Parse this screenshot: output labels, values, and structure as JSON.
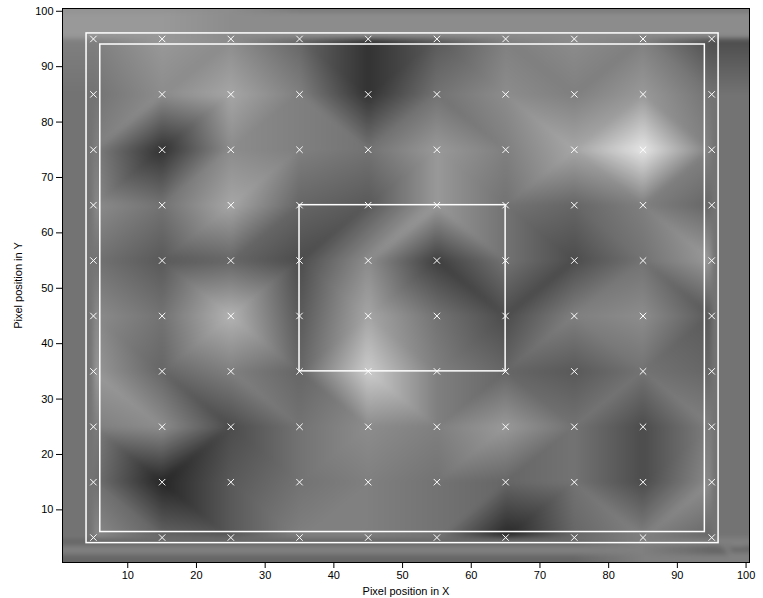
{
  "chart_data": {
    "type": "heatmap",
    "x_label": "Pixel position in X",
    "y_label": "Pixel position in Y",
    "xlim": [
      0.5,
      100.5
    ],
    "ylim": [
      0.5,
      100.5
    ],
    "xticks": [
      10,
      20,
      30,
      40,
      50,
      60,
      70,
      80,
      90,
      100
    ],
    "yticks": [
      10,
      20,
      30,
      40,
      50,
      60,
      70,
      80,
      90,
      100
    ],
    "grid": false,
    "cells": {
      "x": [
        5,
        15,
        25,
        35,
        45,
        55,
        65,
        75,
        85,
        95
      ],
      "y": [
        95,
        85,
        75,
        65,
        55,
        45,
        35,
        25,
        15,
        5
      ],
      "values": [
        [
          0.5,
          0.6,
          0.55,
          0.4,
          0.2,
          0.35,
          0.5,
          0.55,
          0.5,
          0.3
        ],
        [
          0.45,
          0.55,
          0.65,
          0.5,
          0.2,
          0.45,
          0.55,
          0.5,
          0.6,
          0.45
        ],
        [
          0.5,
          0.2,
          0.55,
          0.5,
          0.45,
          0.6,
          0.5,
          0.65,
          0.9,
          0.5
        ],
        [
          0.55,
          0.45,
          0.65,
          0.4,
          0.35,
          0.6,
          0.45,
          0.4,
          0.5,
          0.4
        ],
        [
          0.45,
          0.35,
          0.4,
          0.3,
          0.55,
          0.25,
          0.45,
          0.3,
          0.45,
          0.6
        ],
        [
          0.55,
          0.45,
          0.7,
          0.35,
          0.65,
          0.45,
          0.3,
          0.5,
          0.55,
          0.35
        ],
        [
          0.6,
          0.4,
          0.5,
          0.4,
          0.8,
          0.5,
          0.4,
          0.35,
          0.45,
          0.4
        ],
        [
          0.5,
          0.55,
          0.3,
          0.45,
          0.55,
          0.5,
          0.6,
          0.45,
          0.3,
          0.5
        ],
        [
          0.45,
          0.15,
          0.35,
          0.45,
          0.5,
          0.45,
          0.4,
          0.45,
          0.3,
          0.55
        ],
        [
          0.55,
          0.4,
          0.35,
          0.5,
          0.5,
          0.45,
          0.15,
          0.4,
          0.5,
          0.4
        ]
      ],
      "value_range": [
        0,
        1
      ]
    },
    "markers": {
      "x": [
        5,
        15,
        25,
        35,
        45,
        55,
        65,
        75,
        85,
        95
      ],
      "y": [
        5,
        15,
        25,
        35,
        45,
        55,
        65,
        75,
        85,
        95
      ],
      "marker": "x",
      "color": "#ffffff"
    },
    "rectangles": {
      "color": "#ffffff",
      "boxes": [
        {
          "x1": 4,
          "x2": 96,
          "y1": 4,
          "y2": 96
        },
        {
          "x1": 6,
          "x2": 94,
          "y1": 6,
          "y2": 94
        },
        {
          "x1": 35,
          "x2": 65,
          "y1": 35,
          "y2": 65
        }
      ]
    }
  }
}
